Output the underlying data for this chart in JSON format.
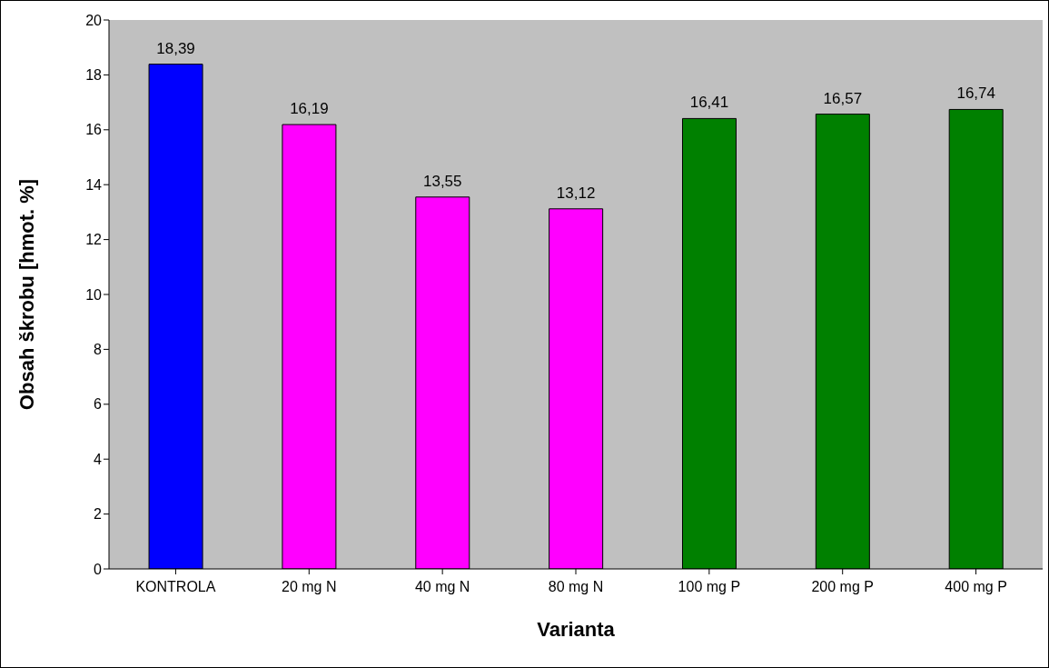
{
  "chart_data": {
    "type": "bar",
    "xlabel": "Varianta",
    "ylabel": "Obsah škrobu [hmot. %]",
    "categories": [
      "KONTROLA",
      "20 mg N",
      "40 mg N",
      "80 mg N",
      "100 mg P",
      "200 mg P",
      "400 mg P"
    ],
    "values": [
      18.39,
      16.19,
      13.55,
      13.12,
      16.41,
      16.57,
      16.74
    ],
    "colors": [
      "#0000ff",
      "#ff00ff",
      "#ff00ff",
      "#ff00ff",
      "#008000",
      "#008000",
      "#008000"
    ],
    "value_labels": [
      "18,39",
      "16,19",
      "13,55",
      "13,12",
      "16,41",
      "16,57",
      "16,74"
    ],
    "ylim": [
      0,
      20
    ],
    "yticks": [
      0,
      2,
      4,
      6,
      8,
      10,
      12,
      14,
      16,
      18,
      20
    ],
    "grid": false
  }
}
